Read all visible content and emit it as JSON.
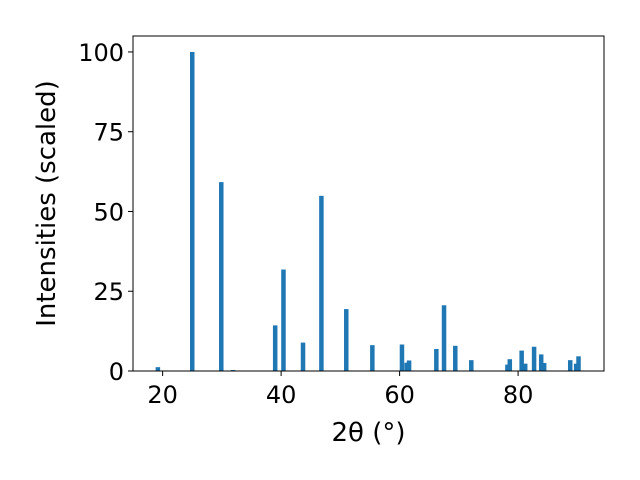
{
  "chart_data": {
    "type": "bar",
    "xlabel": "2θ (°)",
    "ylabel": "Intensities (scaled)",
    "xlim": [
      15,
      94.5
    ],
    "ylim": [
      0,
      105
    ],
    "x_ticks": [
      20,
      40,
      60,
      80
    ],
    "y_ticks": [
      0,
      25,
      50,
      75,
      100
    ],
    "bar_color": "#1f77b4",
    "grid": false,
    "x": [
      19.2,
      25.0,
      29.9,
      31.9,
      39.0,
      40.4,
      43.7,
      46.8,
      51.0,
      55.4,
      60.4,
      61.2,
      61.6,
      66.2,
      67.5,
      69.4,
      72.1,
      78.2,
      78.6,
      80.6,
      81.2,
      82.7,
      83.9,
      84.4,
      88.8,
      89.8,
      90.2
    ],
    "values": [
      1.2,
      100,
      59.2,
      0.3,
      14.3,
      31.8,
      8.9,
      54.9,
      19.4,
      8.1,
      8.3,
      2.6,
      3.3,
      6.9,
      20.6,
      7.9,
      3.4,
      2.0,
      3.7,
      6.4,
      2.3,
      7.6,
      5.2,
      2.5,
      3.4,
      2.3,
      4.6
    ]
  }
}
